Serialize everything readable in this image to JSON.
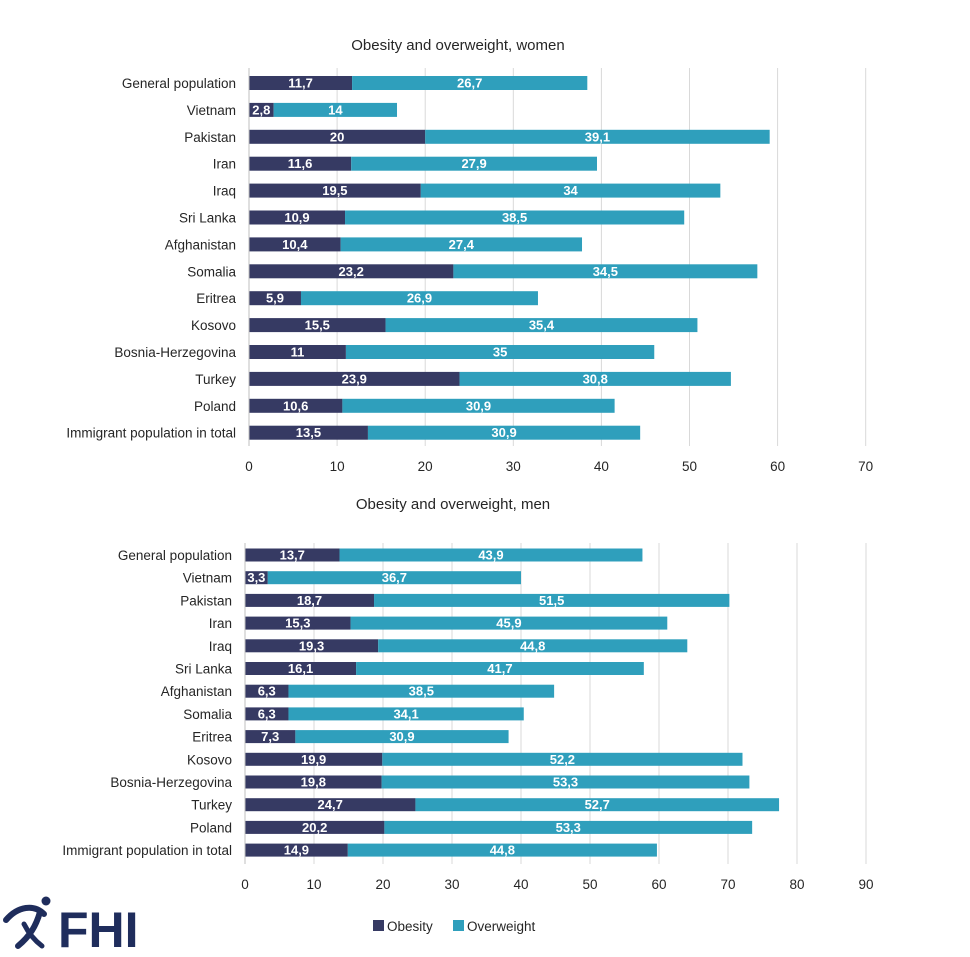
{
  "colors": {
    "obesity": "#363a63",
    "overweight": "#2f9fbc",
    "grid": "#d9d9d9",
    "logo": "#1f2d5c"
  },
  "legend": {
    "obesity": "Obesity",
    "overweight": "Overweight",
    "placement": "bottom"
  },
  "logo": {
    "text": "FHI",
    "icon": "fhi-figure-icon"
  },
  "chart_data": [
    {
      "type": "bar",
      "orientation": "horizontal",
      "stacked": true,
      "title": "Obesity and overweight, women",
      "categories": [
        "General population",
        "Vietnam",
        "Pakistan",
        "Iran",
        "Iraq",
        "Sri Lanka",
        "Afghanistan",
        "Somalia",
        "Eritrea",
        "Kosovo",
        "Bosnia-Herzegovina",
        "Turkey",
        "Poland",
        "Immigrant population in total"
      ],
      "series": [
        {
          "name": "Obesity",
          "values": [
            11.7,
            2.8,
            20,
            11.6,
            19.5,
            10.9,
            10.4,
            23.2,
            5.9,
            15.5,
            11,
            23.9,
            10.6,
            13.5
          ],
          "labels": [
            "11,7",
            "2,8",
            "20",
            "11,6",
            "19,5",
            "10,9",
            "10,4",
            "23,2",
            "5,9",
            "15,5",
            "11",
            "23,9",
            "10,6",
            "13,5"
          ]
        },
        {
          "name": "Overweight",
          "values": [
            26.7,
            14,
            39.1,
            27.9,
            34,
            38.5,
            27.4,
            34.5,
            26.9,
            35.4,
            35,
            30.8,
            30.9,
            30.9
          ],
          "labels": [
            "26,7",
            "14",
            "39,1",
            "27,9",
            "34",
            "38,5",
            "27,4",
            "34,5",
            "26,9",
            "35,4",
            "35",
            "30,8",
            "30,9",
            "30,9"
          ]
        }
      ],
      "xlim": [
        0,
        70
      ],
      "xticks": [
        "0",
        "10",
        "20",
        "30",
        "40",
        "50",
        "60",
        "70"
      ],
      "grid": true
    },
    {
      "type": "bar",
      "orientation": "horizontal",
      "stacked": true,
      "title": "Obesity and overweight, men",
      "categories": [
        "General population",
        "Vietnam",
        "Pakistan",
        "Iran",
        "Iraq",
        "Sri Lanka",
        "Afghanistan",
        "Somalia",
        "Eritrea",
        "Kosovo",
        "Bosnia-Herzegovina",
        "Turkey",
        "Poland",
        "Immigrant population in total"
      ],
      "series": [
        {
          "name": "Obesity",
          "values": [
            13.7,
            3.3,
            18.7,
            15.3,
            19.3,
            16.1,
            6.3,
            6.3,
            7.3,
            19.9,
            19.8,
            24.7,
            20.2,
            14.9
          ],
          "labels": [
            "13,7",
            "3,3",
            "18,7",
            "15,3",
            "19,3",
            "16,1",
            "6,3",
            "6,3",
            "7,3",
            "19,9",
            "19,8",
            "24,7",
            "20,2",
            "14,9"
          ]
        },
        {
          "name": "Overweight",
          "values": [
            43.9,
            36.7,
            51.5,
            45.9,
            44.8,
            41.7,
            38.5,
            34.1,
            30.9,
            52.2,
            53.3,
            52.7,
            53.3,
            44.8
          ],
          "labels": [
            "43,9",
            "36,7",
            "51,5",
            "45,9",
            "44,8",
            "41,7",
            "38,5",
            "34,1",
            "30,9",
            "52,2",
            "53,3",
            "52,7",
            "53,3",
            "44,8"
          ]
        }
      ],
      "xlim": [
        0,
        90
      ],
      "xticks": [
        "0",
        "10",
        "20",
        "30",
        "40",
        "50",
        "60",
        "70",
        "80",
        "90"
      ],
      "grid": true
    }
  ]
}
